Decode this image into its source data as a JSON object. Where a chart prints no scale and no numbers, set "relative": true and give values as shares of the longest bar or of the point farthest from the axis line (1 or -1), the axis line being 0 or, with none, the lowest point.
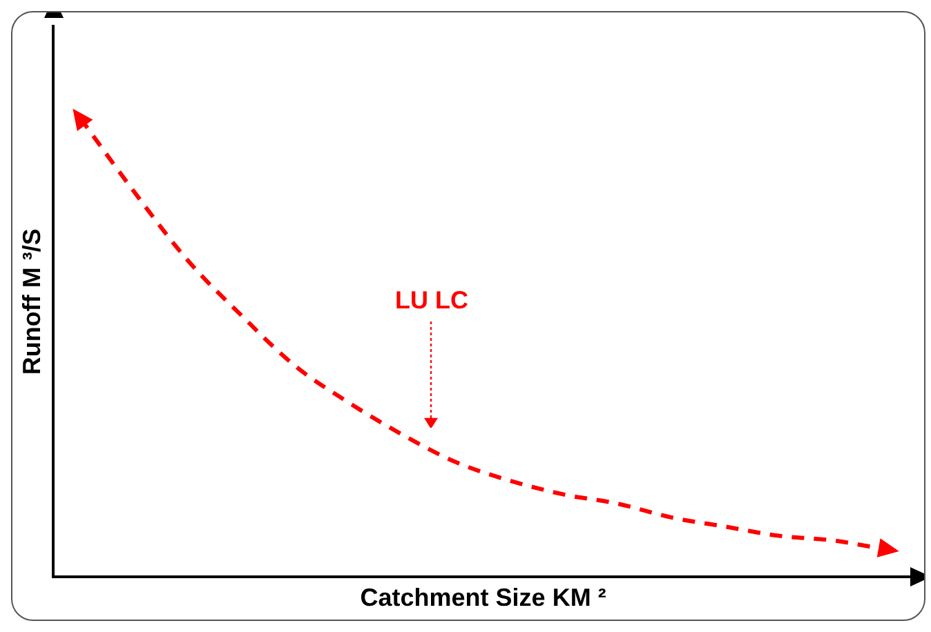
{
  "chart_data": {
    "type": "line",
    "relative": true,
    "xlabel": "Catchment Size KM ²",
    "ylabel": "Runoff M ³/S",
    "categories": [
      null,
      null,
      null,
      null,
      null,
      null,
      null,
      null,
      null,
      null,
      null,
      null,
      null,
      null,
      null,
      null
    ],
    "series": [
      {
        "color": "#ff0000",
        "values": [
          1,
          0.84,
          0.69,
          0.57,
          0.46,
          0.38,
          0.31,
          0.25,
          0.21,
          0.18,
          0.16,
          0.13,
          0.11,
          0.09,
          0.08,
          0.06
        ]
      }
    ],
    "annotations": [
      "LU LC"
    ],
    "line_style": "dashed",
    "marker": "none",
    "grid": false,
    "legend": false
  }
}
